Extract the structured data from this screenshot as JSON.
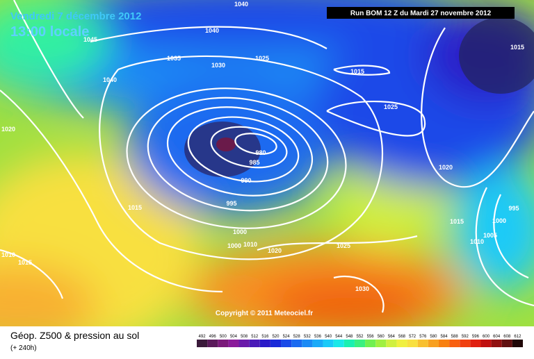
{
  "header": {
    "date": "Vendredi 7 décembre 2012",
    "time": "13:00 locale",
    "run": "Run BOM 12 Z du Mardi 27 novembre 2012"
  },
  "map": {
    "isobar_labels": [
      "1040",
      "1040",
      "1045",
      "1035",
      "1030",
      "1025",
      "1015",
      "1040",
      "1025",
      "1020",
      "980",
      "985",
      "990",
      "995",
      "1015",
      "1020",
      "1015",
      "995",
      "1000",
      "1015",
      "1005",
      "1010",
      "1000",
      "1000",
      "1010",
      "1020",
      "1025",
      "1010",
      "1015",
      "1030"
    ]
  },
  "copyright": "Copyright © 2011 Meteociel.fr",
  "footer": {
    "title": "Géop. Z500 & pression au sol",
    "lead": "(+ 240h)"
  },
  "scale": {
    "labels": [
      492,
      496,
      500,
      504,
      508,
      512,
      516,
      520,
      524,
      528,
      532,
      536,
      540,
      544,
      548,
      552,
      556,
      560,
      564,
      568,
      572,
      576,
      580,
      584,
      588,
      592,
      596,
      600,
      604,
      608,
      612
    ],
    "colors": [
      "#3a1a3a",
      "#5a1a5a",
      "#7a1a7a",
      "#8a1a9a",
      "#6a1aaa",
      "#4a1ab8",
      "#2a1ac8",
      "#1a2ad8",
      "#1a4ae8",
      "#1a6af0",
      "#1a8af5",
      "#1aaaf8",
      "#1acaf8",
      "#1ae8e8",
      "#1af0b0",
      "#3af080",
      "#70f050",
      "#a0f040",
      "#d0f040",
      "#f0f040",
      "#f8e040",
      "#f8c030",
      "#f8a020",
      "#f88010",
      "#f86010",
      "#f04010",
      "#e02010",
      "#c01010",
      "#901010",
      "#601010",
      "#200808"
    ]
  }
}
